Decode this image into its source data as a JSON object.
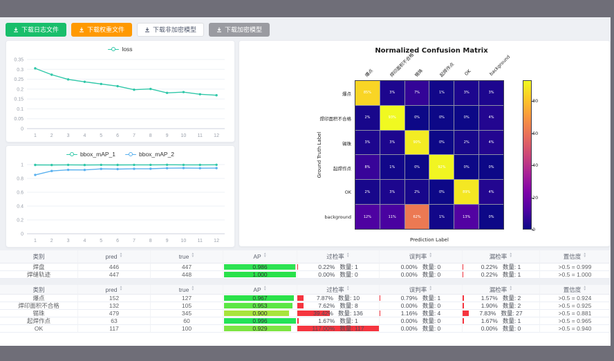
{
  "toolbar": {
    "buttons": [
      {
        "label": "下载日志文件",
        "bg": "#19be6b",
        "fg": "#ffffff",
        "border": "#19be6b"
      },
      {
        "label": "下载权重文件",
        "bg": "#ff9900",
        "fg": "#ffffff",
        "border": "#ff9900"
      },
      {
        "label": "下载非加密模型",
        "bg": "#ffffff",
        "fg": "#515a6e",
        "border": "#dcdee2"
      },
      {
        "label": "下载加密模型",
        "bg": "#9a9ba1",
        "fg": "#ffffff",
        "border": "#9a9ba1"
      }
    ]
  },
  "chart_data": [
    {
      "type": "line",
      "name": "loss-chart",
      "x": [
        "1",
        "2",
        "3",
        "4",
        "5",
        "6",
        "7",
        "8",
        "9",
        "10",
        "11",
        "12"
      ],
      "ylim": [
        0,
        0.35
      ],
      "yticks": [
        0,
        0.05,
        0.1,
        0.15,
        0.2,
        0.25,
        0.3,
        0.35
      ],
      "legend_position": "top",
      "grid": true,
      "series": [
        {
          "name": "loss",
          "color": "#2fc7a8",
          "values": [
            0.305,
            0.273,
            0.249,
            0.237,
            0.226,
            0.215,
            0.197,
            0.201,
            0.181,
            0.185,
            0.174,
            0.169
          ]
        }
      ]
    },
    {
      "type": "line",
      "name": "map-chart",
      "x": [
        "1",
        "2",
        "3",
        "4",
        "5",
        "6",
        "7",
        "8",
        "9",
        "10",
        "11",
        "12"
      ],
      "ylim": [
        0,
        1
      ],
      "yticks": [
        0,
        0.2,
        0.4,
        0.6,
        0.8,
        1
      ],
      "legend_position": "top",
      "grid": true,
      "series": [
        {
          "name": "bbox_mAP_1",
          "color": "#2fc7a8",
          "values": [
            0.995,
            0.994,
            0.996,
            0.994,
            0.996,
            0.995,
            0.996,
            0.996,
            0.997,
            0.996,
            0.996,
            0.997
          ]
        },
        {
          "name": "bbox_mAP_2",
          "color": "#5ab1ef",
          "values": [
            0.851,
            0.908,
            0.924,
            0.923,
            0.938,
            0.935,
            0.939,
            0.94,
            0.948,
            0.95,
            0.948,
            0.949
          ]
        }
      ]
    },
    {
      "type": "heatmap",
      "name": "confusion-matrix",
      "title": "Normalized Confusion Matrix",
      "xlabel": "Prediction Label",
      "ylabel": "Ground Truth Label",
      "unit": "%",
      "classes": [
        "爆点",
        "焊印面积不合格",
        "锡珠",
        "起焊作点",
        "OK",
        "background"
      ],
      "values": [
        [
          85,
          3,
          7,
          1,
          3,
          3
        ],
        [
          2,
          93,
          0,
          0,
          0,
          4
        ],
        [
          3,
          3,
          90,
          0,
          2,
          4
        ],
        [
          8,
          1,
          0,
          92,
          0,
          0
        ],
        [
          2,
          3,
          2,
          0,
          89,
          4
        ],
        [
          12,
          11,
          62,
          1,
          13,
          0
        ]
      ],
      "vmin": 0,
      "vmax": 93,
      "colorbar_ticks": [
        0,
        20,
        40,
        60,
        80
      ],
      "colormap": "plasma",
      "colormap_stops": [
        [
          0,
          "#0d0887"
        ],
        [
          0.125,
          "#4c02a1"
        ],
        [
          0.25,
          "#7e03a8"
        ],
        [
          0.375,
          "#a82296"
        ],
        [
          0.5,
          "#cc4778"
        ],
        [
          0.625,
          "#e66c5c"
        ],
        [
          0.75,
          "#f89441"
        ],
        [
          0.875,
          "#fdc527"
        ],
        [
          1,
          "#f0f921"
        ]
      ]
    }
  ],
  "tables": {
    "columns": [
      {
        "key": "cls",
        "label": "类别",
        "sortable": false
      },
      {
        "key": "pred",
        "label": "pred",
        "sortable": true
      },
      {
        "key": "true",
        "label": "true",
        "sortable": true
      },
      {
        "key": "ap",
        "label": "AP",
        "sortable": true
      },
      {
        "key": "overkill",
        "label": "过检率",
        "sortable": true
      },
      {
        "key": "misjudge",
        "label": "误判率",
        "sortable": true
      },
      {
        "key": "miss",
        "label": "漏检率",
        "sortable": true
      },
      {
        "key": "conf",
        "label": "置信度",
        "sortable": true
      }
    ],
    "count_label": "数量",
    "rate_bar_color": "#f5353f",
    "ap_rest_color": "#ffc9d4",
    "groups": [
      {
        "rows": [
          {
            "cls": "焊盘",
            "pred": "446",
            "true": "447",
            "ap": "0.986",
            "ap_value": 0.986,
            "ap_color": "#2de352",
            "ap_rest": true,
            "overkill": {
              "pct": "0.22%",
              "count": "1",
              "bar": 0.22
            },
            "misjudge": {
              "pct": "0.00%",
              "count": "0",
              "bar": 0
            },
            "miss": {
              "pct": "0.22%",
              "count": "1",
              "bar": 0.22
            },
            "conf": ">0.5 = 0.999"
          },
          {
            "cls": "焊缝轨迹",
            "pred": "447",
            "true": "448",
            "ap": "1.000",
            "ap_value": 1.0,
            "ap_color": "#29e14b",
            "ap_rest": false,
            "overkill": {
              "pct": "0.00%",
              "count": "0",
              "bar": 0
            },
            "misjudge": {
              "pct": "0.00%",
              "count": "0",
              "bar": 0
            },
            "miss": {
              "pct": "0.22%",
              "count": "1",
              "bar": 0.22
            },
            "conf": ">0.5 = 1.000"
          }
        ]
      },
      {
        "rows": [
          {
            "cls": "爆点",
            "pred": "152",
            "true": "127",
            "ap": "0.967",
            "ap_value": 0.967,
            "ap_color": "#2ce24a",
            "ap_rest": false,
            "overkill": {
              "pct": "7.87%",
              "count": "10",
              "bar": 7.87
            },
            "misjudge": {
              "pct": "0.79%",
              "count": "1",
              "bar": 0.79
            },
            "miss": {
              "pct": "1.57%",
              "count": "2",
              "bar": 1.57
            },
            "conf": ">0.5 = 0.924"
          },
          {
            "cls": "焊印面积不合格",
            "pred": "132",
            "true": "105",
            "ap": "0.953",
            "ap_value": 0.953,
            "ap_color": "#5ce645",
            "ap_rest": false,
            "overkill": {
              "pct": "7.62%",
              "count": "8",
              "bar": 7.62
            },
            "misjudge": {
              "pct": "0.00%",
              "count": "0",
              "bar": 0
            },
            "miss": {
              "pct": "1.90%",
              "count": "2",
              "bar": 1.9
            },
            "conf": ">0.5 = 0.925"
          },
          {
            "cls": "锡珠",
            "pred": "479",
            "true": "345",
            "ap": "0.900",
            "ap_value": 0.9,
            "ap_color": "#a8e43c",
            "ap_rest": false,
            "overkill": {
              "pct": "39.42%",
              "count": "136",
              "bar": 39.42
            },
            "misjudge": {
              "pct": "1.16%",
              "count": "4",
              "bar": 1.16
            },
            "miss": {
              "pct": "7.83%",
              "count": "27",
              "bar": 7.83
            },
            "conf": ">0.5 = 0.881"
          },
          {
            "cls": "起焊作点",
            "pred": "63",
            "true": "60",
            "ap": "0.996",
            "ap_value": 0.996,
            "ap_color": "#23e358",
            "ap_rest": false,
            "overkill": {
              "pct": "1.67%",
              "count": "1",
              "bar": 1.67
            },
            "misjudge": {
              "pct": "0.00%",
              "count": "0",
              "bar": 0
            },
            "miss": {
              "pct": "1.67%",
              "count": "1",
              "bar": 1.67
            },
            "conf": ">0.5 = 0.965"
          },
          {
            "cls": "OK",
            "pred": "117",
            "true": "100",
            "ap": "0.929",
            "ap_value": 0.929,
            "ap_color": "#7ee443",
            "ap_rest": false,
            "overkill": {
              "pct": "117.00%",
              "count": "117",
              "bar": 100
            },
            "misjudge": {
              "pct": "0.00%",
              "count": "0",
              "bar": 0
            },
            "miss": {
              "pct": "0.00%",
              "count": "0",
              "bar": 0
            },
            "conf": ">0.5 = 0.940"
          }
        ]
      }
    ]
  }
}
